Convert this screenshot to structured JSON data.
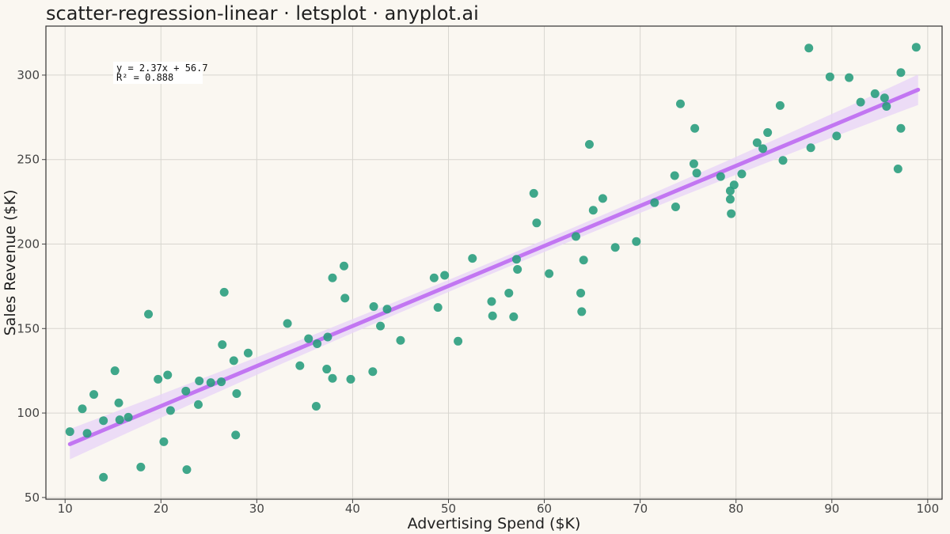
{
  "chart_data": {
    "type": "scatter",
    "title": "scatter-regression-linear · letsplot · anyplot.ai",
    "xlabel": "Advertising Spend ($K)",
    "ylabel": "Sales Revenue ($K)",
    "xlim": [
      8,
      101.5
    ],
    "ylim": [
      49,
      329
    ],
    "x_ticks": [
      10,
      20,
      30,
      40,
      50,
      60,
      70,
      80,
      90,
      100
    ],
    "y_ticks": [
      50,
      100,
      150,
      200,
      250,
      300
    ],
    "grid": true,
    "colors": {
      "background": "#faf7f1",
      "panel_border": "#333333",
      "grid": "#d8d6d0",
      "points": "#2a9d7e",
      "line": "#c276f2",
      "band": "#e9d5f7"
    },
    "annotation": {
      "equation": "y = 2.37x + 56.7",
      "r_squared": "R² = 0.888"
    },
    "regression": {
      "slope": 2.37,
      "intercept": 56.7,
      "x_range": [
        10.5,
        99
      ],
      "band_halfwidth_ends": 9,
      "band_halfwidth_mid": 3.5
    },
    "points": [
      [
        10.5,
        89
      ],
      [
        11.8,
        102.5
      ],
      [
        12.3,
        88
      ],
      [
        13,
        111
      ],
      [
        14,
        95.5
      ],
      [
        14,
        62
      ],
      [
        15.2,
        125
      ],
      [
        15.6,
        106
      ],
      [
        15.7,
        96
      ],
      [
        16.6,
        97.5
      ],
      [
        17.9,
        68
      ],
      [
        18.7,
        158.5
      ],
      [
        19.7,
        120
      ],
      [
        20.3,
        83
      ],
      [
        20.7,
        122.5
      ],
      [
        21,
        101.5
      ],
      [
        22.6,
        113
      ],
      [
        22.7,
        66.5
      ],
      [
        23.9,
        105
      ],
      [
        24,
        119
      ],
      [
        25.2,
        118
      ],
      [
        26.3,
        118.5
      ],
      [
        26.4,
        140.5
      ],
      [
        26.6,
        171.5
      ],
      [
        27.6,
        131
      ],
      [
        27.8,
        87
      ],
      [
        27.9,
        111.5
      ],
      [
        29.1,
        135.5
      ],
      [
        33.2,
        153
      ],
      [
        34.5,
        128
      ],
      [
        35.4,
        144
      ],
      [
        36.2,
        104
      ],
      [
        36.3,
        141
      ],
      [
        37.3,
        126
      ],
      [
        37.4,
        145
      ],
      [
        37.9,
        180
      ],
      [
        37.9,
        120.5
      ],
      [
        39.1,
        187
      ],
      [
        39.2,
        168
      ],
      [
        39.8,
        120
      ],
      [
        42.1,
        124.5
      ],
      [
        42.2,
        163
      ],
      [
        42.9,
        151.5
      ],
      [
        43.6,
        161.5
      ],
      [
        45,
        143
      ],
      [
        48.5,
        180
      ],
      [
        48.9,
        162.5
      ],
      [
        49.6,
        181.5
      ],
      [
        51,
        142.5
      ],
      [
        52.5,
        191.5
      ],
      [
        54.5,
        166
      ],
      [
        54.6,
        157.5
      ],
      [
        56.3,
        171
      ],
      [
        56.8,
        157
      ],
      [
        57.1,
        191
      ],
      [
        57.2,
        185
      ],
      [
        58.9,
        230
      ],
      [
        59.2,
        212.5
      ],
      [
        60.5,
        182.5
      ],
      [
        63.3,
        204.5
      ],
      [
        63.8,
        171
      ],
      [
        63.9,
        160
      ],
      [
        64.1,
        190.5
      ],
      [
        64.7,
        259
      ],
      [
        65.1,
        220
      ],
      [
        66.1,
        227
      ],
      [
        67.4,
        198
      ],
      [
        69.6,
        201.5
      ],
      [
        71.5,
        224.5
      ],
      [
        73.6,
        240.5
      ],
      [
        73.7,
        222
      ],
      [
        74.2,
        283
      ],
      [
        75.6,
        247.5
      ],
      [
        75.7,
        268.5
      ],
      [
        75.9,
        242
      ],
      [
        78.4,
        240
      ],
      [
        79.4,
        226.5
      ],
      [
        79.4,
        231.5
      ],
      [
        79.5,
        218
      ],
      [
        79.8,
        235
      ],
      [
        80.6,
        241.5
      ],
      [
        82.2,
        260
      ],
      [
        82.8,
        256.5
      ],
      [
        83.3,
        266
      ],
      [
        84.6,
        282
      ],
      [
        84.9,
        249.5
      ],
      [
        87.6,
        316
      ],
      [
        87.8,
        257
      ],
      [
        89.8,
        299
      ],
      [
        90.5,
        264
      ],
      [
        91.8,
        298.5
      ],
      [
        93,
        284
      ],
      [
        94.5,
        289
      ],
      [
        95.5,
        286.5
      ],
      [
        95.7,
        281.5
      ],
      [
        96.9,
        244.5
      ],
      [
        97.2,
        268.5
      ],
      [
        97.2,
        301.5
      ],
      [
        98.8,
        316.5
      ]
    ]
  }
}
